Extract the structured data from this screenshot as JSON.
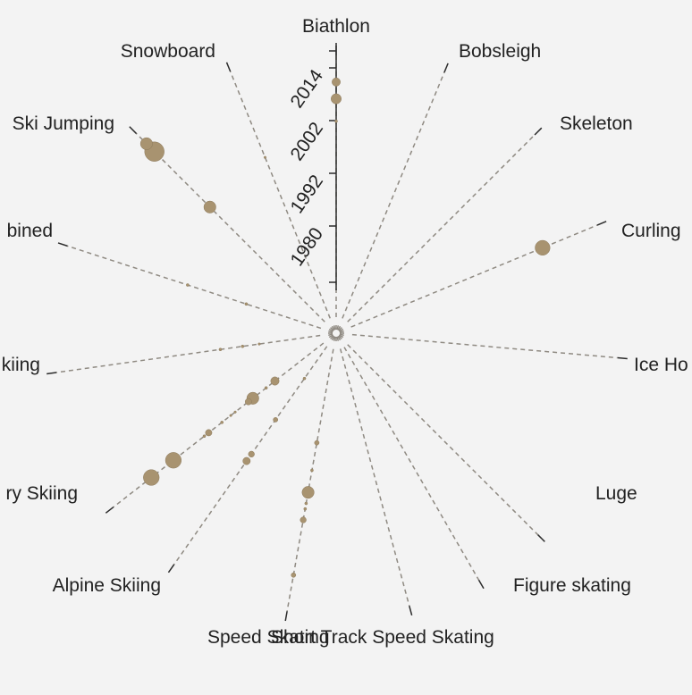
{
  "chart_data": {
    "type": "scatter",
    "subtype": "radial",
    "title": "",
    "radial_axis": {
      "ticks": [
        "1980",
        "1992",
        "2002",
        "2014"
      ],
      "tick_years": [
        1980,
        1992,
        2002,
        2014
      ],
      "range": [
        1928,
        2018
      ]
    },
    "colors": {
      "dot": "#a89370",
      "spoke": "#8f8a82",
      "axis": "#2b2b2b",
      "background": "#f3f3f3"
    },
    "sports": [
      {
        "name": "Biathlon",
        "angle": 0,
        "points": [
          [
            1998,
            0.6
          ],
          [
            2006,
            2.2
          ],
          [
            2012,
            1.8
          ]
        ]
      },
      {
        "name": "Bobsleigh",
        "angle": 22.5,
        "points": []
      },
      {
        "name": "Skeleton",
        "angle": 45,
        "points": []
      },
      {
        "name": "Curling",
        "angle": 67.5,
        "points": [
          [
            2002,
            3.2
          ]
        ]
      },
      {
        "name": "Ice Hockey",
        "angle": 95,
        "points": []
      },
      {
        "name": "Luge",
        "angle": 135,
        "points": []
      },
      {
        "name": "Figure skating",
        "angle": 150,
        "points": []
      },
      {
        "name": "Short Track Speed Skating",
        "angle": 165,
        "points": []
      },
      {
        "name": "Speed Skating",
        "angle": 190,
        "points": [
          [
            1962,
            1.0
          ],
          [
            1972,
            0.6
          ],
          [
            1980,
            2.6
          ],
          [
            1984,
            0.6
          ],
          [
            1986,
            0.6
          ],
          [
            1990,
            1.3
          ],
          [
            2010,
            1.0
          ]
        ]
      },
      {
        "name": "Alpine Skiing",
        "angle": 215,
        "points": [
          [
            1942,
            0.6
          ],
          [
            1960,
            1.0
          ],
          [
            1975,
            1.3
          ],
          [
            1978,
            1.6
          ]
        ]
      },
      {
        "name": "Cross Country Skiing",
        "angle": 232,
        "points": [
          [
            1950,
            1.8
          ],
          [
            1954,
            0.6
          ],
          [
            1960,
            2.6
          ],
          [
            1962,
            1.4
          ],
          [
            1968,
            0.5
          ],
          [
            1970,
            0.5
          ],
          [
            1974,
            0.6
          ],
          [
            1980,
            1.4
          ],
          [
            1982,
            0.6
          ],
          [
            1996,
            3.4
          ],
          [
            2006,
            3.4
          ]
        ]
      },
      {
        "name": "Nordic Combined",
        "angle": 262,
        "points": [
          [
            1950,
            0.5
          ],
          [
            1956,
            0.6
          ],
          [
            1964,
            0.6
          ]
        ]
      },
      {
        "name": "Nordic Combined Upper",
        "angle": 288,
        "points": [
          [
            1956,
            0.6
          ],
          [
            1978,
            0.6
          ]
        ]
      },
      {
        "name": "Ski Jumping",
        "angle": 315,
        "points": [
          [
            1986,
            2.6
          ],
          [
            2014,
            4.2
          ],
          [
            2018,
            2.6
          ]
        ]
      },
      {
        "name": "Snowboard",
        "angle": 338,
        "points": [
          [
            1990,
            0.5
          ]
        ]
      }
    ],
    "labels": [
      {
        "name": "Biathlon",
        "text": "Biathlon"
      },
      {
        "name": "Bobsleigh",
        "text": "Bobsleigh"
      },
      {
        "name": "Skeleton",
        "text": "Skeleton"
      },
      {
        "name": "Curling",
        "text": "Curling"
      },
      {
        "name": "Ice Hockey",
        "text": "Ice Ho"
      },
      {
        "name": "Luge",
        "text": "Luge"
      },
      {
        "name": "Figure skating",
        "text": "Figure skating"
      },
      {
        "name": "Short Track Speed Skating",
        "text": "Short Track Speed Skating"
      },
      {
        "name": "Speed Skating",
        "text": "Speed Skating"
      },
      {
        "name": "Alpine Skiing",
        "text": "Alpine Skiing"
      },
      {
        "name": "Cross Country Skiing",
        "text": "ry Skiing"
      },
      {
        "name": "Nordic Combined",
        "text": "kiing"
      },
      {
        "name": "Nordic Combined Upper",
        "text": "bined"
      },
      {
        "name": "Ski Jumping",
        "text": "Ski Jumping"
      },
      {
        "name": "Snowboard",
        "text": "Snowboard"
      }
    ]
  }
}
